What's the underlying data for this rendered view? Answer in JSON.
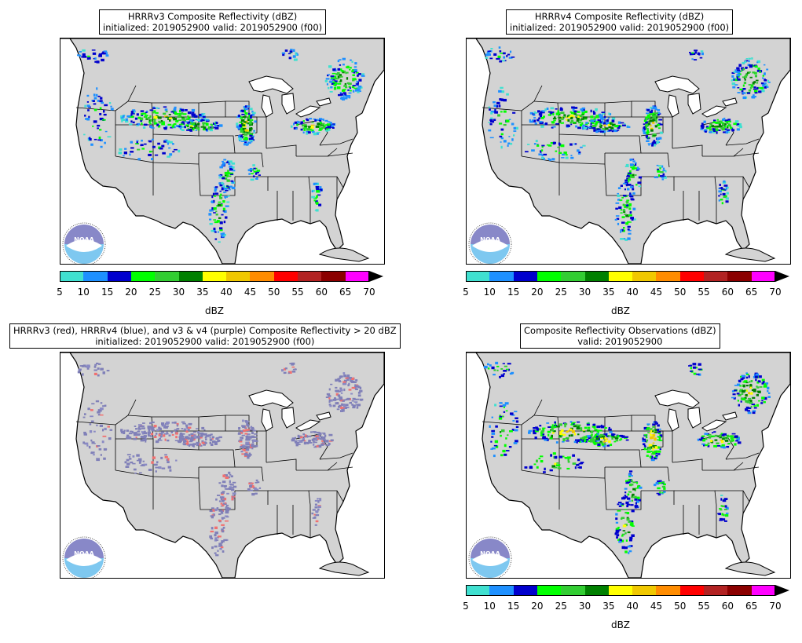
{
  "panels": [
    {
      "title": "HRRRv3 Composite Reflectivity (dBZ)",
      "subtitle": "initialized: 2019052900 valid: 2019052900 (f00)",
      "kind": "reflectivity"
    },
    {
      "title": "HRRRv4 Composite Reflectivity (dBZ)",
      "subtitle": "initialized: 2019052900 valid: 2019052900 (f00)",
      "kind": "reflectivity"
    },
    {
      "title": "HRRRv3 (red), HRRRv4 (blue), and v3 & v4 (purple) Composite Reflectivity > 20 dBZ",
      "subtitle": "initialized: 2019052900 valid: 2019052900 (f00)",
      "kind": "overlap"
    },
    {
      "title": "Composite Reflectivity Observations (dBZ)",
      "subtitle": "valid: 2019052900",
      "kind": "observations"
    }
  ],
  "colorbar": {
    "label": "dBZ",
    "ticks": [
      "5",
      "10",
      "15",
      "20",
      "25",
      "30",
      "35",
      "40",
      "45",
      "50",
      "55",
      "60",
      "65",
      "70"
    ],
    "colors": [
      "#40e0d0",
      "#1e90ff",
      "#0000cd",
      "#00ff00",
      "#32cd32",
      "#008000",
      "#ffff00",
      "#f0c800",
      "#ff8c00",
      "#ff0000",
      "#b22222",
      "#8b0000",
      "#ff00ff"
    ]
  },
  "overlap_colors": {
    "v3_only": "#f07070",
    "v4_only": "#8a8ac4",
    "both": "#8080b8"
  },
  "map_colors": {
    "land": "#d3d3d3",
    "water": "#ffffff",
    "border": "#000000"
  },
  "logo": {
    "text": "NOAA",
    "top_color": "#8888c8",
    "bottom_color": "#7ec8f0"
  }
}
